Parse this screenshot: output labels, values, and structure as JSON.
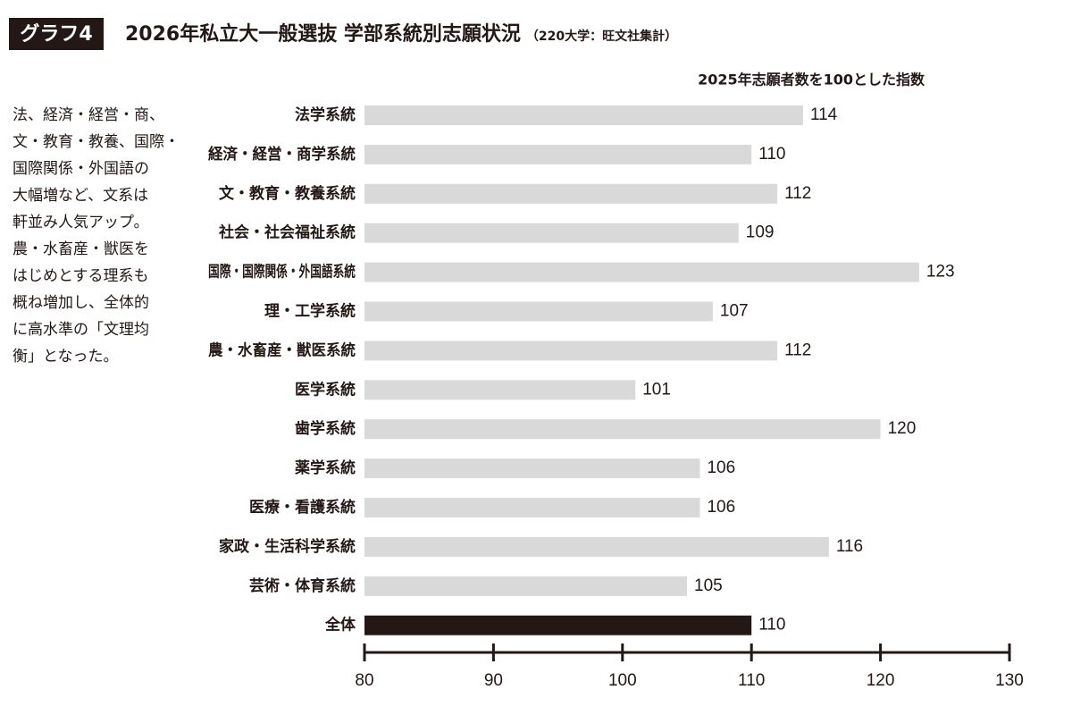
{
  "chart_data": {
    "type": "bar",
    "badge": "グラフ4",
    "title": "2026年私立大一般選抜 学部系統別志願状況",
    "subtitle": "（220大学：旺文社集計）",
    "axis_title": "2025年志願者数を100とした指数",
    "annotation": [
      "法、経済・経営・商、",
      "文・教育・教養、国際・",
      "国際関係・外国語の",
      "大幅増など、文系は",
      "軒並み人気アップ。",
      "農・水畜産・獣医を",
      "はじめとする理系も",
      "概ね増加し、全体的",
      "に高水準の「文理均",
      "衡」となった。"
    ],
    "categories": [
      "法学系統",
      "経済・経営・商学系統",
      "文・教育・教養系統",
      "社会・社会福祉系統",
      "国際・国際関係・外国語系統",
      "理・工学系統",
      "農・水畜産・獣医系統",
      "医学系統",
      "歯学系統",
      "薬学系統",
      "医療・看護系統",
      "家政・生活科学系統",
      "芸術・体育系統",
      "全体"
    ],
    "values": [
      114,
      110,
      112,
      109,
      123,
      107,
      112,
      101,
      120,
      106,
      106,
      116,
      105,
      110
    ],
    "colors": [
      "#d9d9d9",
      "#d9d9d9",
      "#d9d9d9",
      "#d9d9d9",
      "#d9d9d9",
      "#d9d9d9",
      "#d9d9d9",
      "#d9d9d9",
      "#d9d9d9",
      "#d9d9d9",
      "#d9d9d9",
      "#d9d9d9",
      "#d9d9d9",
      "#231815"
    ],
    "xlim": [
      80,
      130
    ],
    "xticks": [
      80,
      90,
      100,
      110,
      120,
      130
    ],
    "orientation": "horizontal"
  }
}
